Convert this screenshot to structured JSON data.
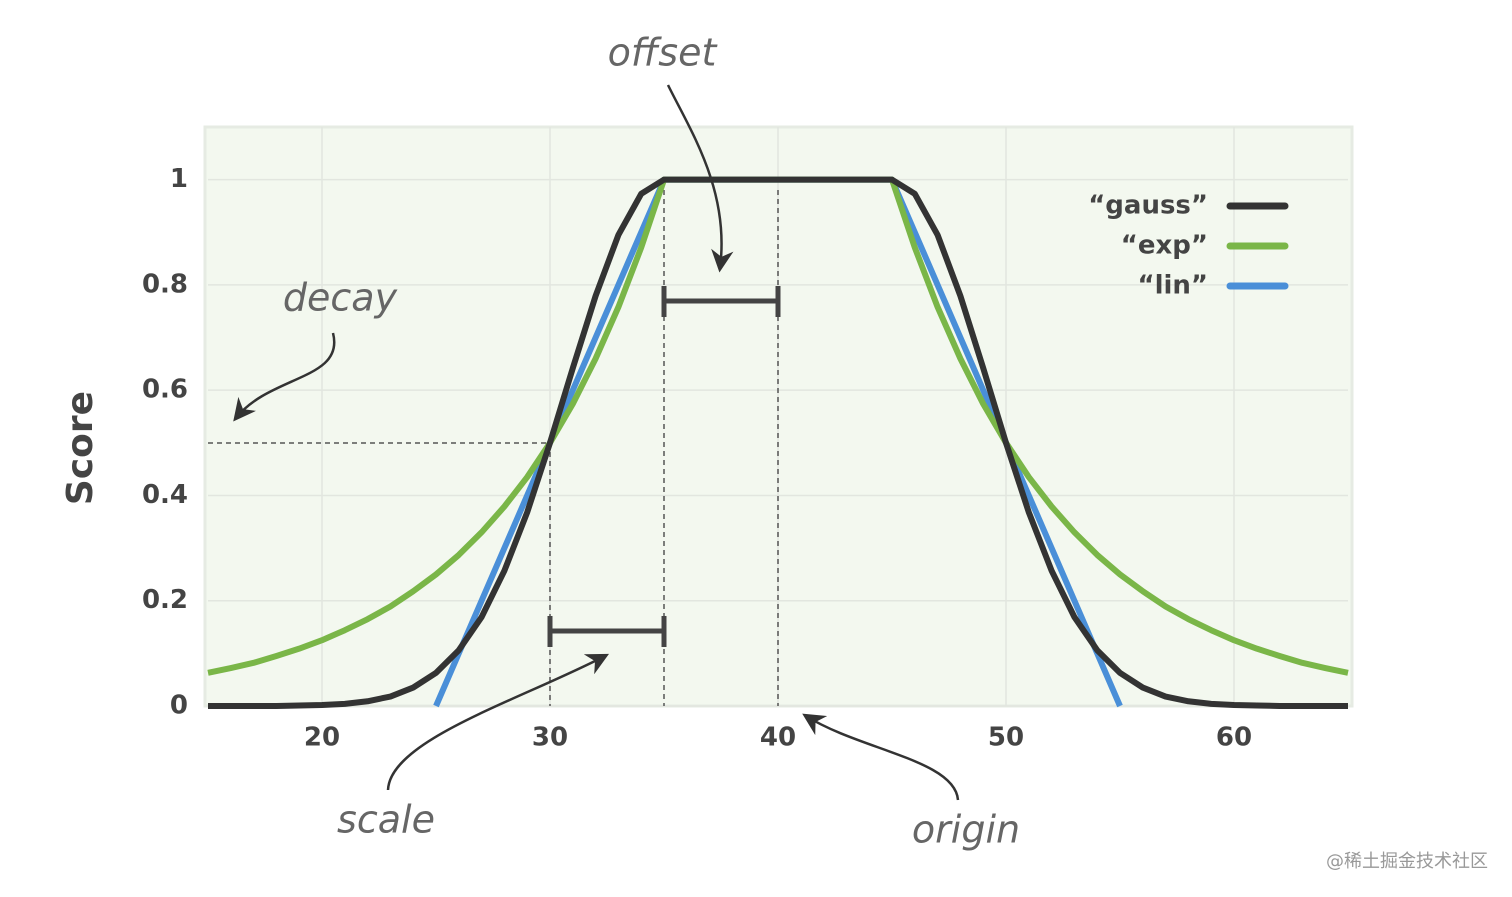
{
  "chart_data": {
    "type": "line",
    "y_label": "Score",
    "annotations": [
      "offset",
      "decay",
      "scale",
      "origin"
    ],
    "watermark": "@稀土掘金技术社区",
    "x": [
      15,
      16,
      17,
      18,
      19,
      20,
      21,
      22,
      23,
      24,
      25,
      26,
      27,
      28,
      29,
      30,
      31,
      32,
      33,
      34,
      35,
      36,
      37,
      38,
      39,
      40,
      41,
      42,
      43,
      44,
      45,
      46,
      47,
      48,
      49,
      50,
      51,
      52,
      53,
      54,
      55,
      56,
      57,
      58,
      59,
      60,
      61,
      62,
      63,
      64,
      65
    ],
    "series": [
      {
        "name": "“gauss”",
        "color": "#333333",
        "values": [
          0,
          0,
          0,
          0,
          0.001,
          0.002,
          0.004,
          0.009,
          0.018,
          0.035,
          0.063,
          0.106,
          0.169,
          0.257,
          0.368,
          0.5,
          0.642,
          0.779,
          0.895,
          0.973,
          1,
          1,
          1,
          1,
          1,
          1,
          1,
          1,
          1,
          1,
          1,
          0.973,
          0.895,
          0.779,
          0.642,
          0.5,
          0.368,
          0.257,
          0.169,
          0.106,
          0.063,
          0.035,
          0.018,
          0.009,
          0.004,
          0.002,
          0.001,
          0,
          0,
          0,
          0
        ]
      },
      {
        "name": "“exp”",
        "color": "#7ab648",
        "values": [
          0.063,
          0.072,
          0.082,
          0.095,
          0.109,
          0.125,
          0.144,
          0.165,
          0.189,
          0.218,
          0.25,
          0.287,
          0.33,
          0.379,
          0.435,
          0.5,
          0.574,
          0.66,
          0.758,
          0.871,
          1,
          1,
          1,
          1,
          1,
          1,
          1,
          1,
          1,
          1,
          1,
          0.871,
          0.758,
          0.66,
          0.574,
          0.5,
          0.435,
          0.379,
          0.33,
          0.287,
          0.25,
          0.218,
          0.189,
          0.165,
          0.144,
          0.125,
          0.109,
          0.095,
          0.082,
          0.072,
          0.063
        ]
      },
      {
        "name": "“lin”",
        "color": "#4a8fd8",
        "values": [
          null,
          null,
          null,
          null,
          null,
          null,
          null,
          null,
          null,
          null,
          0,
          0.1,
          0.2,
          0.3,
          0.4,
          0.5,
          0.6,
          0.7,
          0.8,
          0.9,
          1,
          1,
          1,
          1,
          1,
          1,
          1,
          1,
          1,
          1,
          1,
          0.9,
          0.8,
          0.7,
          0.6,
          0.5,
          0.4,
          0.3,
          0.2,
          0.1,
          0,
          null,
          null,
          null,
          null,
          null,
          null,
          null,
          null,
          null,
          null
        ]
      }
    ],
    "xlim": [
      15,
      65
    ],
    "xticks": [
      20,
      30,
      40,
      50,
      60
    ],
    "ylim": [
      0,
      1.1
    ],
    "yticks": [
      0,
      0.2,
      0.4,
      0.6,
      0.8,
      1
    ],
    "grid": true,
    "legend": "upper right"
  }
}
